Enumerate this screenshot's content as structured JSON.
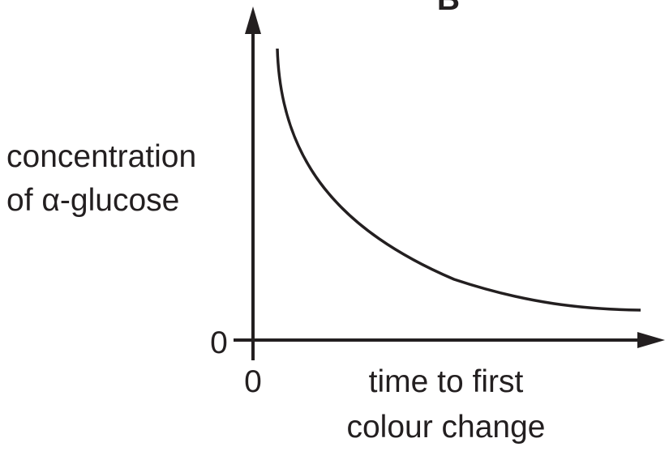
{
  "panel_label": "B",
  "y_axis_label": [
    "concentration",
    "of α-glucose"
  ],
  "x_axis_label": [
    "time to first",
    "colour change"
  ],
  "y_origin_label": "0",
  "x_origin_label": "0"
}
